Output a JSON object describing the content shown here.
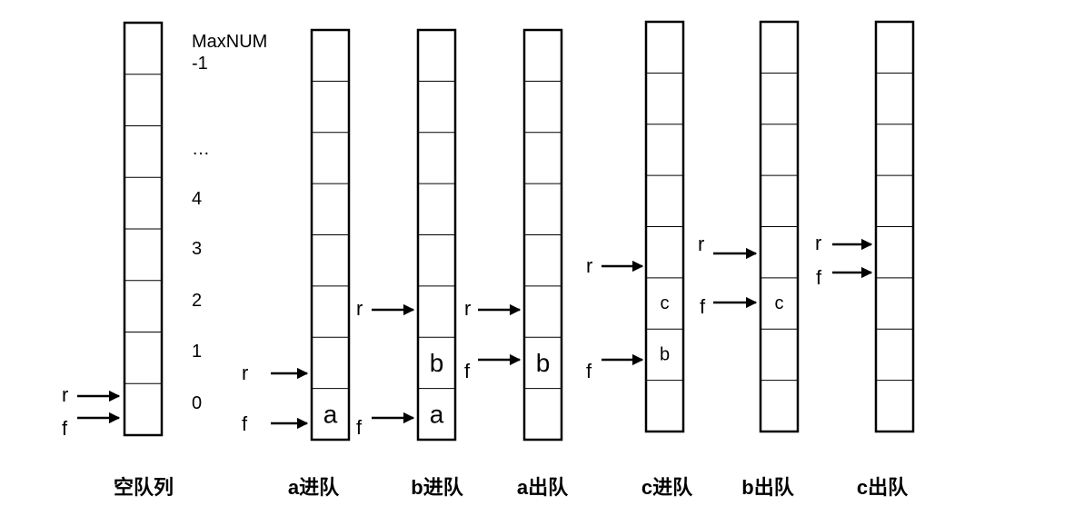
{
  "index_labels": {
    "max_line1": "MaxNUM",
    "max_line2": "-1",
    "ellipsis": "…",
    "i4": "4",
    "i3": "3",
    "i2": "2",
    "i1": "1",
    "i0": "0"
  },
  "pointers": {
    "rear": "r",
    "front": "f"
  },
  "queues": [
    {
      "caption": "空队列",
      "cells": [],
      "rear": 0,
      "front": 0
    },
    {
      "caption": "a进队",
      "cells": [
        "a"
      ],
      "rear": 1,
      "front": 0
    },
    {
      "caption": "b进队",
      "cells": [
        "a",
        "b"
      ],
      "rear": 2,
      "front": 0
    },
    {
      "caption": "a出队",
      "cells": [
        "",
        "b"
      ],
      "rear": 2,
      "front": 1
    },
    {
      "caption": "c进队",
      "cells": [
        "",
        "b",
        "c"
      ],
      "rear": 3,
      "front": 1
    },
    {
      "caption": "b出队",
      "cells": [
        "",
        "",
        "c"
      ],
      "rear": 3,
      "front": 2
    },
    {
      "caption": "c出队",
      "cells": [],
      "rear": 3,
      "front": 3
    }
  ]
}
